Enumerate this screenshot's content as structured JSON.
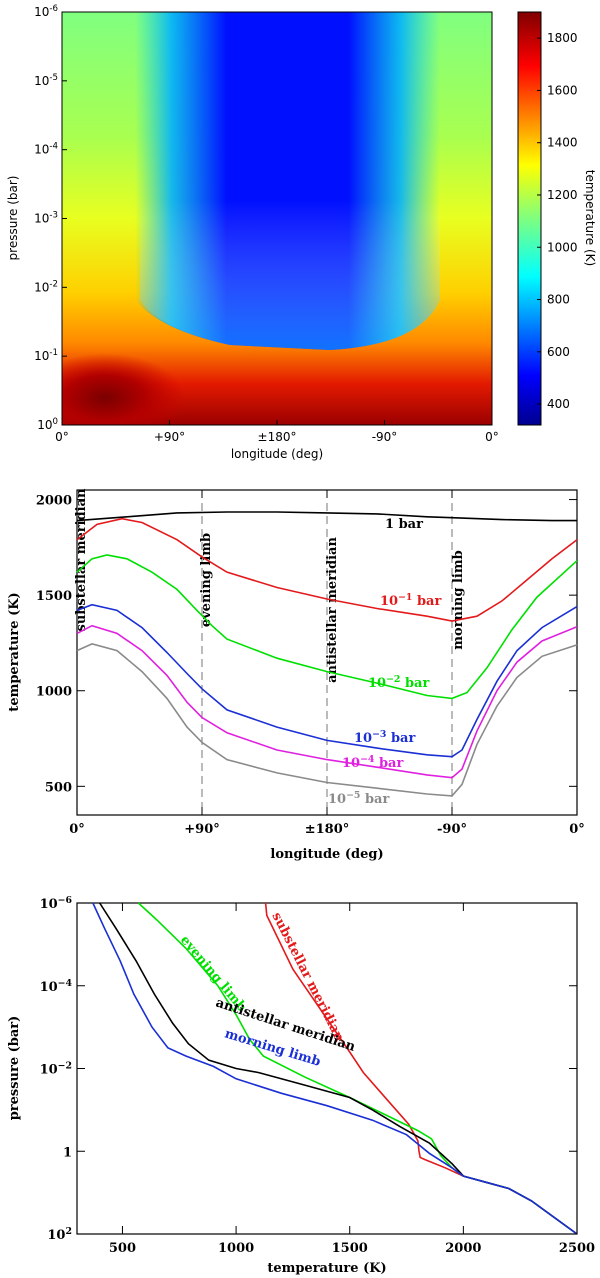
{
  "chart_data": [
    {
      "type": "heatmap",
      "xlabel": "longitude (deg)",
      "ylabel": "pressure (bar)",
      "x_ticks": [
        "0°",
        "+90°",
        "±180°",
        "-90°",
        "0°"
      ],
      "y_ticks": [
        {
          "base": "10",
          "exp": "0"
        },
        {
          "base": "10",
          "exp": "-1"
        },
        {
          "base": "10",
          "exp": "-2"
        },
        {
          "base": "10",
          "exp": "-3"
        },
        {
          "base": "10",
          "exp": "-4"
        },
        {
          "base": "10",
          "exp": "-5"
        },
        {
          "base": "10",
          "exp": "-6"
        }
      ],
      "colorbar": {
        "label": "temperature (K)",
        "range": [
          320,
          1900
        ],
        "ticks": [
          "400",
          "600",
          "800",
          "1000",
          "1200",
          "1400",
          "1600",
          "1800"
        ]
      }
    },
    {
      "type": "line",
      "xlabel": "longitude (deg)",
      "ylabel": "temperature (K)",
      "x_ticks": [
        "0°",
        "+90°",
        "±180°",
        "-90°",
        "0°"
      ],
      "x": [
        0,
        0.25,
        0.5,
        0.75,
        1.0
      ],
      "ylim": [
        350,
        2050
      ],
      "y_ticks": [
        "500",
        "1000",
        "1500",
        "2000"
      ],
      "vlines": [
        {
          "label": "substellar meridian"
        },
        {
          "label": "evening limb"
        },
        {
          "label": "antistellar meridian"
        },
        {
          "label": "morning limb"
        }
      ],
      "series": [
        {
          "name": "1 bar",
          "base": "1 bar",
          "exp": "",
          "color": "#000000",
          "points": [
            [
              0,
              1890
            ],
            [
              0.1,
              1910
            ],
            [
              0.2,
              1930
            ],
            [
              0.3,
              1935
            ],
            [
              0.4,
              1935
            ],
            [
              0.5,
              1930
            ],
            [
              0.6,
              1925
            ],
            [
              0.7,
              1910
            ],
            [
              0.75,
              1905
            ],
            [
              0.85,
              1895
            ],
            [
              0.95,
              1890
            ],
            [
              1.0,
              1890
            ]
          ]
        },
        {
          "name": "10^-1 bar",
          "base": "10",
          "exp": "−1",
          "suffix": " bar",
          "color": "#e31a1c",
          "points": [
            [
              0,
              1790
            ],
            [
              0.04,
              1870
            ],
            [
              0.09,
              1900
            ],
            [
              0.13,
              1880
            ],
            [
              0.2,
              1790
            ],
            [
              0.25,
              1700
            ],
            [
              0.3,
              1620
            ],
            [
              0.4,
              1540
            ],
            [
              0.5,
              1480
            ],
            [
              0.6,
              1430
            ],
            [
              0.7,
              1390
            ],
            [
              0.75,
              1365
            ],
            [
              0.8,
              1390
            ],
            [
              0.85,
              1470
            ],
            [
              0.9,
              1580
            ],
            [
              0.95,
              1690
            ],
            [
              1.0,
              1790
            ]
          ]
        },
        {
          "name": "10^-2 bar",
          "base": "10",
          "exp": "−2",
          "suffix": " bar",
          "color": "#00e000",
          "points": [
            [
              0,
              1620
            ],
            [
              0.03,
              1690
            ],
            [
              0.06,
              1710
            ],
            [
              0.1,
              1690
            ],
            [
              0.15,
              1620
            ],
            [
              0.2,
              1530
            ],
            [
              0.24,
              1420
            ],
            [
              0.27,
              1340
            ],
            [
              0.3,
              1270
            ],
            [
              0.4,
              1170
            ],
            [
              0.5,
              1100
            ],
            [
              0.6,
              1040
            ],
            [
              0.7,
              975
            ],
            [
              0.75,
              960
            ],
            [
              0.78,
              990
            ],
            [
              0.82,
              1120
            ],
            [
              0.87,
              1320
            ],
            [
              0.92,
              1490
            ],
            [
              1.0,
              1680
            ]
          ]
        },
        {
          "name": "10^-3 bar",
          "base": "10",
          "exp": "−3",
          "suffix": " bar",
          "color": "#1a2fd4",
          "points": [
            [
              0,
              1420
            ],
            [
              0.03,
              1450
            ],
            [
              0.08,
              1420
            ],
            [
              0.13,
              1330
            ],
            [
              0.18,
              1200
            ],
            [
              0.22,
              1090
            ],
            [
              0.25,
              1010
            ],
            [
              0.3,
              900
            ],
            [
              0.4,
              810
            ],
            [
              0.5,
              740
            ],
            [
              0.6,
              700
            ],
            [
              0.7,
              665
            ],
            [
              0.75,
              655
            ],
            [
              0.77,
              690
            ],
            [
              0.8,
              850
            ],
            [
              0.84,
              1050
            ],
            [
              0.88,
              1210
            ],
            [
              0.93,
              1330
            ],
            [
              1.0,
              1440
            ]
          ]
        },
        {
          "name": "10^-4 bar",
          "base": "10",
          "exp": "−4",
          "suffix": " bar",
          "color": "#e020e0",
          "points": [
            [
              0,
              1300
            ],
            [
              0.03,
              1340
            ],
            [
              0.08,
              1300
            ],
            [
              0.13,
              1210
            ],
            [
              0.18,
              1080
            ],
            [
              0.22,
              940
            ],
            [
              0.25,
              860
            ],
            [
              0.3,
              780
            ],
            [
              0.4,
              690
            ],
            [
              0.5,
              640
            ],
            [
              0.6,
              600
            ],
            [
              0.7,
              560
            ],
            [
              0.75,
              545
            ],
            [
              0.77,
              590
            ],
            [
              0.8,
              790
            ],
            [
              0.84,
              1000
            ],
            [
              0.88,
              1150
            ],
            [
              0.93,
              1260
            ],
            [
              1.0,
              1335
            ]
          ]
        },
        {
          "name": "10^-5 bar",
          "base": "10",
          "exp": "−5",
          "suffix": " bar",
          "color": "#8a8a8a",
          "points": [
            [
              0,
              1210
            ],
            [
              0.03,
              1245
            ],
            [
              0.08,
              1210
            ],
            [
              0.13,
              1100
            ],
            [
              0.18,
              960
            ],
            [
              0.22,
              810
            ],
            [
              0.25,
              730
            ],
            [
              0.3,
              640
            ],
            [
              0.4,
              570
            ],
            [
              0.5,
              520
            ],
            [
              0.6,
              490
            ],
            [
              0.7,
              460
            ],
            [
              0.75,
              450
            ],
            [
              0.77,
              510
            ],
            [
              0.8,
              720
            ],
            [
              0.84,
              920
            ],
            [
              0.88,
              1070
            ],
            [
              0.93,
              1180
            ],
            [
              1.0,
              1240
            ]
          ]
        }
      ]
    },
    {
      "type": "line",
      "xlabel": "temperature (K)",
      "ylabel": "pressure (bar)",
      "xlim": [
        300,
        2500
      ],
      "x_ticks": [
        "500",
        "1000",
        "1500",
        "2000",
        "2500"
      ],
      "y_log_range": [
        -6,
        2
      ],
      "y_ticks": [
        {
          "base": "10",
          "exp": "−6",
          "value": -6
        },
        {
          "base": "10",
          "exp": "−4",
          "value": -4
        },
        {
          "base": "10",
          "exp": "−2",
          "value": -2
        },
        {
          "base": "1",
          "exp": "",
          "value": 0
        },
        {
          "base": "10",
          "exp": "2",
          "value": 2
        }
      ],
      "series": [
        {
          "name": "substellar meridian",
          "color": "#e31a1c",
          "points": [
            [
              1130,
              -6
            ],
            [
              1135,
              -5.7
            ],
            [
              1250,
              -4.4
            ],
            [
              1400,
              -3.2
            ],
            [
              1500,
              -2.4
            ],
            [
              1560,
              -1.9
            ],
            [
              1680,
              -1.15
            ],
            [
              1760,
              -0.65
            ],
            [
              1800,
              -0.25
            ],
            [
              1805,
              0
            ],
            [
              1810,
              0.15
            ],
            [
              1830,
              0.2
            ],
            [
              1920,
              0.4
            ],
            [
              2000,
              0.6
            ],
            [
              2100,
              0.75
            ],
            [
              2200,
              0.9
            ],
            [
              2300,
              1.2
            ],
            [
              2400,
              1.6
            ],
            [
              2500,
              2.0
            ]
          ]
        },
        {
          "name": "evening limb",
          "color": "#00e000",
          "points": [
            [
              570,
              -6
            ],
            [
              650,
              -5.6
            ],
            [
              780,
              -4.9
            ],
            [
              920,
              -4.0
            ],
            [
              1000,
              -3.3
            ],
            [
              1060,
              -2.7
            ],
            [
              1120,
              -2.3
            ],
            [
              1300,
              -1.8
            ],
            [
              1500,
              -1.3
            ],
            [
              1650,
              -0.9
            ],
            [
              1800,
              -0.5
            ],
            [
              1860,
              -0.3
            ],
            [
              1900,
              0.1
            ],
            [
              1950,
              0.4
            ],
            [
              2000,
              0.6
            ],
            [
              2100,
              0.75
            ],
            [
              2200,
              0.9
            ],
            [
              2300,
              1.2
            ],
            [
              2400,
              1.6
            ],
            [
              2500,
              2.0
            ]
          ]
        },
        {
          "name": "antistellar meridian",
          "color": "#000000",
          "points": [
            [
              400,
              -6
            ],
            [
              470,
              -5.4
            ],
            [
              560,
              -4.6
            ],
            [
              640,
              -3.8
            ],
            [
              720,
              -3.1
            ],
            [
              790,
              -2.6
            ],
            [
              880,
              -2.2
            ],
            [
              1000,
              -2.0
            ],
            [
              1100,
              -1.9
            ],
            [
              1300,
              -1.6
            ],
            [
              1500,
              -1.3
            ],
            [
              1600,
              -1.0
            ],
            [
              1720,
              -0.6
            ],
            [
              1850,
              -0.2
            ],
            [
              1950,
              0.3
            ],
            [
              2000,
              0.6
            ],
            [
              2100,
              0.75
            ],
            [
              2200,
              0.9
            ],
            [
              2300,
              1.2
            ],
            [
              2400,
              1.6
            ],
            [
              2500,
              2.0
            ]
          ]
        },
        {
          "name": "morning limb",
          "color": "#1a2fd4",
          "points": [
            [
              370,
              -6
            ],
            [
              420,
              -5.4
            ],
            [
              490,
              -4.6
            ],
            [
              550,
              -3.8
            ],
            [
              630,
              -3.0
            ],
            [
              700,
              -2.5
            ],
            [
              780,
              -2.3
            ],
            [
              900,
              -2.05
            ],
            [
              1000,
              -1.75
            ],
            [
              1200,
              -1.4
            ],
            [
              1400,
              -1.1
            ],
            [
              1600,
              -0.75
            ],
            [
              1750,
              -0.4
            ],
            [
              1850,
              0.05
            ],
            [
              1950,
              0.4
            ],
            [
              2000,
              0.6
            ],
            [
              2100,
              0.75
            ],
            [
              2200,
              0.9
            ],
            [
              2300,
              1.2
            ],
            [
              2400,
              1.6
            ],
            [
              2500,
              2.0
            ]
          ]
        }
      ]
    }
  ]
}
